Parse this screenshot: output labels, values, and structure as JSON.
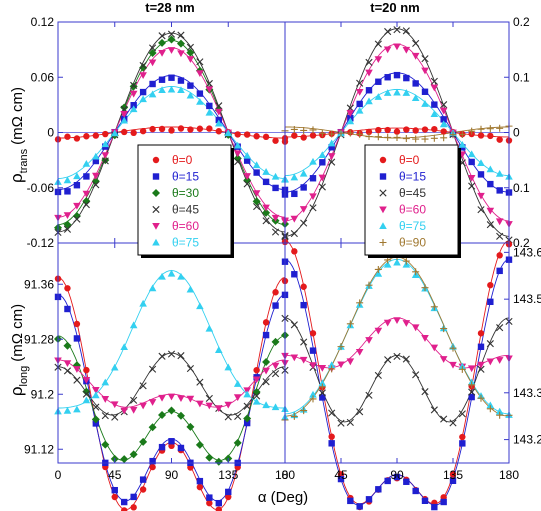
{
  "chart_data": {
    "type": "scatter",
    "x_label": "α (Deg)",
    "x_ticks": [
      0,
      45,
      90,
      135,
      180
    ],
    "x_range": [
      0,
      180
    ],
    "panel_titles": [
      "t=28 nm",
      "t=20 nm"
    ],
    "y_label_top_main": "ρ",
    "y_label_top_sub": "trans",
    "y_label_top_unit": "(mΩ cm)",
    "y_label_bottom_main": "ρ",
    "y_label_bottom_sub": "long",
    "y_label_bottom_unit": "(mΩ cm)",
    "colors": {
      "0": "#e41a1c",
      "15": "#1f1fd0",
      "30": "#1a7a1a",
      "45": "#333333",
      "60": "#e0208c",
      "75": "#33d0f0",
      "90": "#a07830"
    },
    "panels": [
      {
        "id": "top-left",
        "ylim": [
          -0.12,
          0.12
        ],
        "yticks": [
          "-0.12",
          "-0.06",
          "0",
          "0.06",
          "0.12"
        ],
        "ytick_values": [
          -0.12,
          -0.06,
          0,
          0.06,
          0.12
        ],
        "tick_side": "left",
        "kind": "trans",
        "series": [
          {
            "theta": 0,
            "amp": 0.006,
            "offset": 0,
            "phase": 0
          },
          {
            "theta": 15,
            "amp": 0.062,
            "offset": 0,
            "phase": 0
          },
          {
            "theta": 30,
            "amp": 0.1,
            "offset": 0,
            "phase": 0
          },
          {
            "theta": 45,
            "amp": 0.108,
            "offset": 0,
            "phase": 0
          },
          {
            "theta": 60,
            "amp": 0.092,
            "offset": 0,
            "phase": 0
          },
          {
            "theta": 75,
            "amp": 0.05,
            "offset": 0,
            "phase": 0
          }
        ],
        "legend": [
          {
            "theta": 0,
            "label": "θ=0"
          },
          {
            "theta": 15,
            "label": "θ=15"
          },
          {
            "theta": 30,
            "label": "θ=30"
          },
          {
            "theta": 45,
            "label": "θ=45"
          },
          {
            "theta": 60,
            "label": "θ=60"
          },
          {
            "theta": 75,
            "label": "θ=75"
          }
        ]
      },
      {
        "id": "top-right",
        "ylim": [
          -0.2,
          0.2
        ],
        "yticks": [
          "-0.2",
          "-0.1",
          "0",
          "0.1",
          "0.2"
        ],
        "ytick_display": [
          "0.2",
          "0.1",
          "0",
          "0.1",
          "0.2"
        ],
        "ytick_values": [
          -0.2,
          -0.1,
          0,
          0.1,
          0.2
        ],
        "tick_side": "right",
        "kind": "trans",
        "series": [
          {
            "theta": 0,
            "amp": 0.008,
            "offset": 0,
            "phase": 0
          },
          {
            "theta": 15,
            "amp": 0.108,
            "offset": 0,
            "phase": 0
          },
          {
            "theta": 45,
            "amp": 0.188,
            "offset": 0,
            "phase": 0
          },
          {
            "theta": 60,
            "amp": 0.16,
            "offset": 0,
            "phase": 0
          },
          {
            "theta": 75,
            "amp": 0.078,
            "offset": 0,
            "phase": 0
          },
          {
            "theta": 90,
            "amp": -0.01,
            "offset": 0,
            "phase": 0
          }
        ],
        "legend": [
          {
            "theta": 0,
            "label": "θ=0"
          },
          {
            "theta": 15,
            "label": "θ=15"
          },
          {
            "theta": 45,
            "label": "θ=45"
          },
          {
            "theta": 60,
            "label": "θ=60"
          },
          {
            "theta": 75,
            "label": "θ=75"
          },
          {
            "theta": 90,
            "label": "θ=90"
          }
        ]
      },
      {
        "id": "bottom-left",
        "ylim": [
          91.1,
          91.42
        ],
        "yticks": [
          "91.12",
          "91.2",
          "91.28",
          "91.36"
        ],
        "ytick_values": [
          91.12,
          91.2,
          91.28,
          91.36
        ],
        "tick_side": "left",
        "kind": "long",
        "series": [
          {
            "theta": 0,
            "base": 91.15,
            "a2": 0.12,
            "a4": 0.1
          },
          {
            "theta": 15,
            "base": 91.15,
            "a2": 0.105,
            "a4": 0.09
          },
          {
            "theta": 30,
            "base": 91.17,
            "a2": 0.055,
            "a4": 0.06
          },
          {
            "theta": 45,
            "base": 91.21,
            "a2": -0.01,
            "a4": 0.04
          },
          {
            "theta": 60,
            "base": 91.205,
            "a2": 0.025,
            "a4": 0.02
          },
          {
            "theta": 75,
            "base": 91.26,
            "a2": -0.1,
            "a4": 0.02
          }
        ]
      },
      {
        "id": "bottom-right",
        "ylim": [
          143.15,
          143.62
        ],
        "yticks": [
          "143.2",
          "143.3",
          "143.5",
          "143.6"
        ],
        "ytick_values": [
          143.2,
          143.3,
          143.5,
          143.6
        ],
        "tick_side": "right",
        "kind": "long",
        "series": [
          {
            "theta": 0,
            "base": 143.25,
            "a2": 0.25,
            "a4": 0.125
          },
          {
            "theta": 15,
            "base": 143.235,
            "a2": 0.23,
            "a4": 0.12
          },
          {
            "theta": 45,
            "base": 143.33,
            "a2": 0.04,
            "a4": 0.09
          },
          {
            "theta": 60,
            "base": 143.39,
            "a2": -0.04,
            "a4": 0.03
          },
          {
            "theta": 75,
            "base": 143.41,
            "a2": -0.165,
            "a4": 0.01
          },
          {
            "theta": 90,
            "base": 143.41,
            "a2": -0.17,
            "a4": 0.01
          }
        ]
      }
    ]
  }
}
